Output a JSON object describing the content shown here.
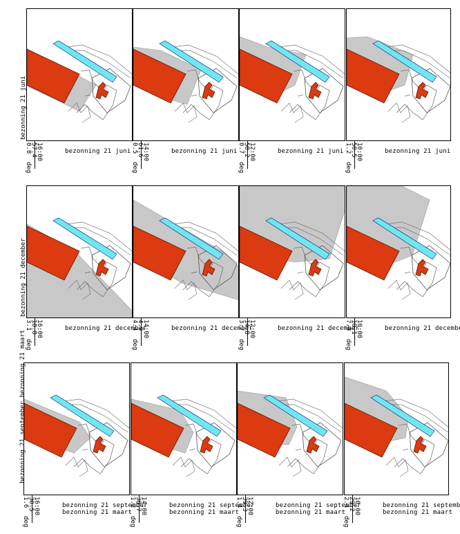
{
  "rows": [
    {
      "side_label": "bezonning 21 juni",
      "panels": [
        {
          "caption": "bezonning 21 juni",
          "time": "16:00",
          "azimuth": "57.4",
          "elevation": "0.8",
          "shadow": "a"
        },
        {
          "caption": "bezonning 21 juni",
          "time": "14:00",
          "azimuth": "61.6",
          "elevation": "0.5",
          "shadow": "b"
        },
        {
          "caption": "bezonning 21 juni",
          "time": "12:00",
          "azimuth": "58.2",
          "elevation": "0.7",
          "shadow": "c"
        },
        {
          "caption": "bezonning 21 juni",
          "time": "10:00",
          "azimuth": "50.5",
          "elevation": "1.2",
          "shadow": "d"
        }
      ]
    },
    {
      "side_label": "bezonning 21 december",
      "panels": [
        {
          "caption": "bezonning 21 december",
          "time": "16:00",
          "azimuth": "18.8",
          "elevation": "3.1",
          "shadow": "e"
        },
        {
          "caption": "bezonning 21 december",
          "time": "14:00",
          "azimuth": "4.9",
          "elevation": "4.4",
          "shadow": "f"
        },
        {
          "caption": "bezonning 21 december",
          "time": "12:00",
          "azimuth": "14.8",
          "elevation": "3.7",
          "shadow": "g"
        },
        {
          "caption": "bezonning 21 december",
          "time": "10:00",
          "azimuth": "10.1",
          "elevation": "7.8",
          "shadow": "h"
        }
      ]
    },
    {
      "side_label": "bezonning 21 september bezonning 21 maart",
      "panels": [
        {
          "caption": "bezonning 21 september",
          "caption2": "bezonning 21 maart",
          "time": "16:00",
          "azimuth": "30.5",
          "elevation": "1.6",
          "shadow": "i"
        },
        {
          "caption": "bezonning 21 september",
          "caption2": "bezonning 21 maart",
          "time": "14:00",
          "azimuth": "38.7",
          "elevation": "1.2",
          "shadow": "j"
        },
        {
          "caption": "bezonning 21 september",
          "caption2": "bezonning 21 maart",
          "time": "12:00",
          "azimuth": "39.3",
          "elevation": "1.4",
          "shadow": "k"
        },
        {
          "caption": "bezonning 21 september",
          "caption2": "bezonning 21 maart",
          "time": "10:00",
          "azimuth": "29.2",
          "elevation": "2.4",
          "shadow": "l"
        }
      ]
    }
  ],
  "colors": {
    "building": "#dc3a10",
    "building_stroke": "#5a1a08",
    "canal": "#6ee8ee",
    "shadow": "#c8c8c8",
    "frame": "#000000",
    "ground_lines": "#777777"
  },
  "units": {
    "deg": "deg"
  }
}
